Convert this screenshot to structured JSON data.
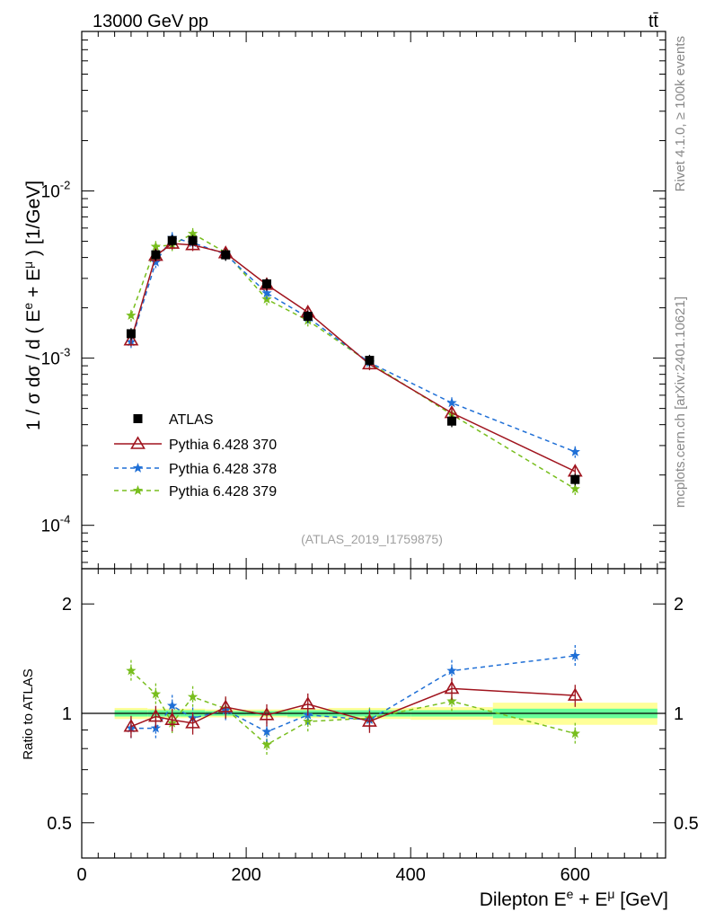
{
  "header": {
    "energy_label": "13000 GeV pp",
    "process_label": "tt̄"
  },
  "side_labels": {
    "rivet": "Rivet 4.1.0, ≥ 100k events",
    "mcplots": "mcplots.cern.ch [arXiv:2401.10621]"
  },
  "watermark": "(ATLAS_2019_I1759875)",
  "colors": {
    "atlas": "#000000",
    "p370": "#a0141e",
    "p378": "#1f6fd6",
    "p379": "#78be1e",
    "band_yellow": "#ffff99",
    "band_green": "#66ff99"
  },
  "chart_data": [
    {
      "type": "line",
      "panel": "main",
      "title": "",
      "xlabel": "",
      "ylabel": "1 / σ dσ / d ( E^e + E^μ ) [1/GeV]",
      "yscale": "log",
      "xlim": [
        0,
        710
      ],
      "ylim": [
        5.5e-05,
        0.09
      ],
      "y_tick_labels": [
        "10^-4",
        "10^-3",
        "10^-2"
      ],
      "x": [
        60,
        90,
        110,
        135,
        175,
        225,
        275,
        350,
        450,
        600
      ],
      "legend": [
        "ATLAS",
        "Pythia 6.428 370",
        "Pythia 6.428 378",
        "Pythia 6.428 379"
      ],
      "series": [
        {
          "name": "ATLAS",
          "values": [
            0.0014,
            0.00415,
            0.00505,
            0.00505,
            0.00415,
            0.00278,
            0.00178,
            0.00097,
            0.00042,
            0.000188
          ]
        },
        {
          "name": "Pythia 6.428 370",
          "values": [
            0.00128,
            0.0041,
            0.00485,
            0.00475,
            0.00425,
            0.00275,
            0.00188,
            0.00092,
            0.00047,
            0.00021
          ]
        },
        {
          "name": "Pythia 6.428 378",
          "values": [
            0.00125,
            0.00375,
            0.00525,
            0.0049,
            0.00418,
            0.00245,
            0.00175,
            0.00094,
            0.00054,
            0.000275
          ]
        },
        {
          "name": "Pythia 6.428 379",
          "values": [
            0.0018,
            0.00465,
            0.00475,
            0.00555,
            0.00428,
            0.00225,
            0.00168,
            0.00094,
            0.00046,
            0.000165
          ]
        }
      ]
    },
    {
      "type": "line",
      "panel": "ratio",
      "title": "",
      "xlabel": "Dilepton E^e + E^μ [GeV]",
      "ylabel": "Ratio to ATLAS",
      "yscale": "log",
      "xlim": [
        0,
        710
      ],
      "ylim": [
        0.4,
        2.5
      ],
      "x_tick_labels": [
        "0",
        "200",
        "400",
        "600"
      ],
      "y_tick_labels": [
        "0.5",
        "1",
        "2"
      ],
      "x": [
        60,
        90,
        110,
        135,
        175,
        225,
        275,
        350,
        450,
        600
      ],
      "band_edges": [
        40,
        80,
        100,
        120,
        150,
        200,
        250,
        300,
        400,
        500,
        700
      ],
      "band_stat_half": [
        0.02,
        0.02,
        0.02,
        0.02,
        0.015,
        0.015,
        0.02,
        0.02,
        0.02,
        0.03
      ],
      "band_total_half": [
        0.035,
        0.03,
        0.03,
        0.03,
        0.025,
        0.025,
        0.03,
        0.035,
        0.04,
        0.07
      ],
      "series": [
        {
          "name": "Pythia 6.428 370",
          "values": [
            0.92,
            0.98,
            0.96,
            0.94,
            1.04,
            0.99,
            1.06,
            0.95,
            1.17,
            1.12
          ]
        },
        {
          "name": "Pythia 6.428 378",
          "values": [
            0.91,
            0.91,
            1.05,
            0.97,
            1.02,
            0.89,
            0.99,
            0.96,
            1.31,
            1.44
          ]
        },
        {
          "name": "Pythia 6.428 379",
          "values": [
            1.31,
            1.13,
            0.94,
            1.11,
            1.03,
            0.82,
            0.95,
            0.97,
            1.08,
            0.88
          ]
        }
      ]
    }
  ]
}
